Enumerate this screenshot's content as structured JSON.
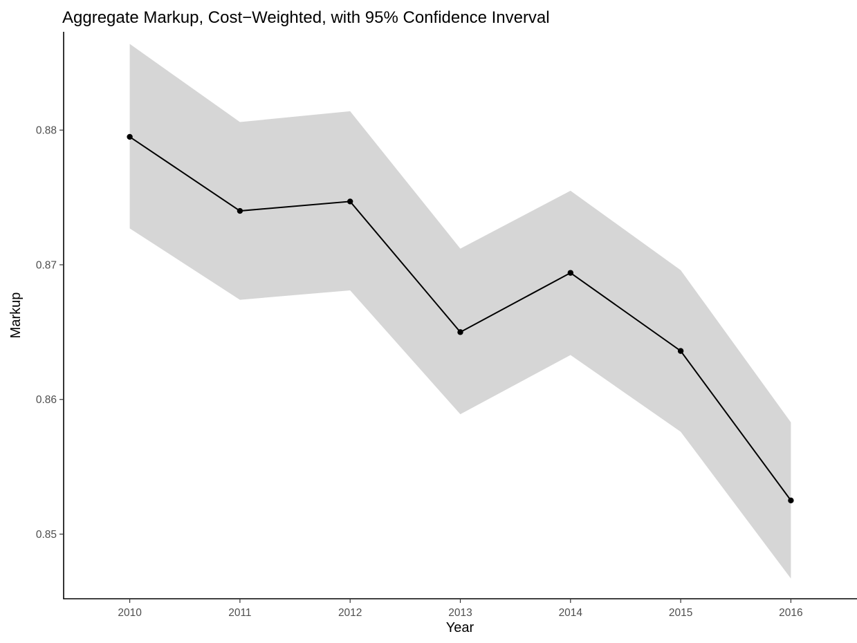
{
  "chart_data": {
    "type": "line",
    "title": "Aggregate Markup, Cost−Weighted, with 95% Confidence Inverval",
    "xlabel": "Year",
    "ylabel": "Markup",
    "x": [
      2010,
      2011,
      2012,
      2013,
      2014,
      2015,
      2016
    ],
    "xlim": [
      2009.4,
      2016.6
    ],
    "ylim": [
      0.8452,
      0.8873
    ],
    "y_ticks": [
      0.85,
      0.86,
      0.87,
      0.88
    ],
    "y_tick_labels": [
      "0.85",
      "0.86",
      "0.87",
      "0.88"
    ],
    "x_tick_labels": [
      "2010",
      "2011",
      "2012",
      "2013",
      "2014",
      "2015",
      "2016"
    ],
    "grid": false,
    "legend": "none",
    "series": [
      {
        "values": [
          0.8795,
          0.874,
          0.8747,
          0.865,
          0.8694,
          0.8636,
          0.8525
        ],
        "lower": [
          0.8727,
          0.8674,
          0.8681,
          0.8589,
          0.8633,
          0.8576,
          0.8467
        ],
        "upper": [
          0.8864,
          0.8806,
          0.8814,
          0.8712,
          0.8755,
          0.8696,
          0.8583
        ],
        "line_color": "#000000",
        "ribbon_color": "#d6d6d6"
      }
    ]
  }
}
